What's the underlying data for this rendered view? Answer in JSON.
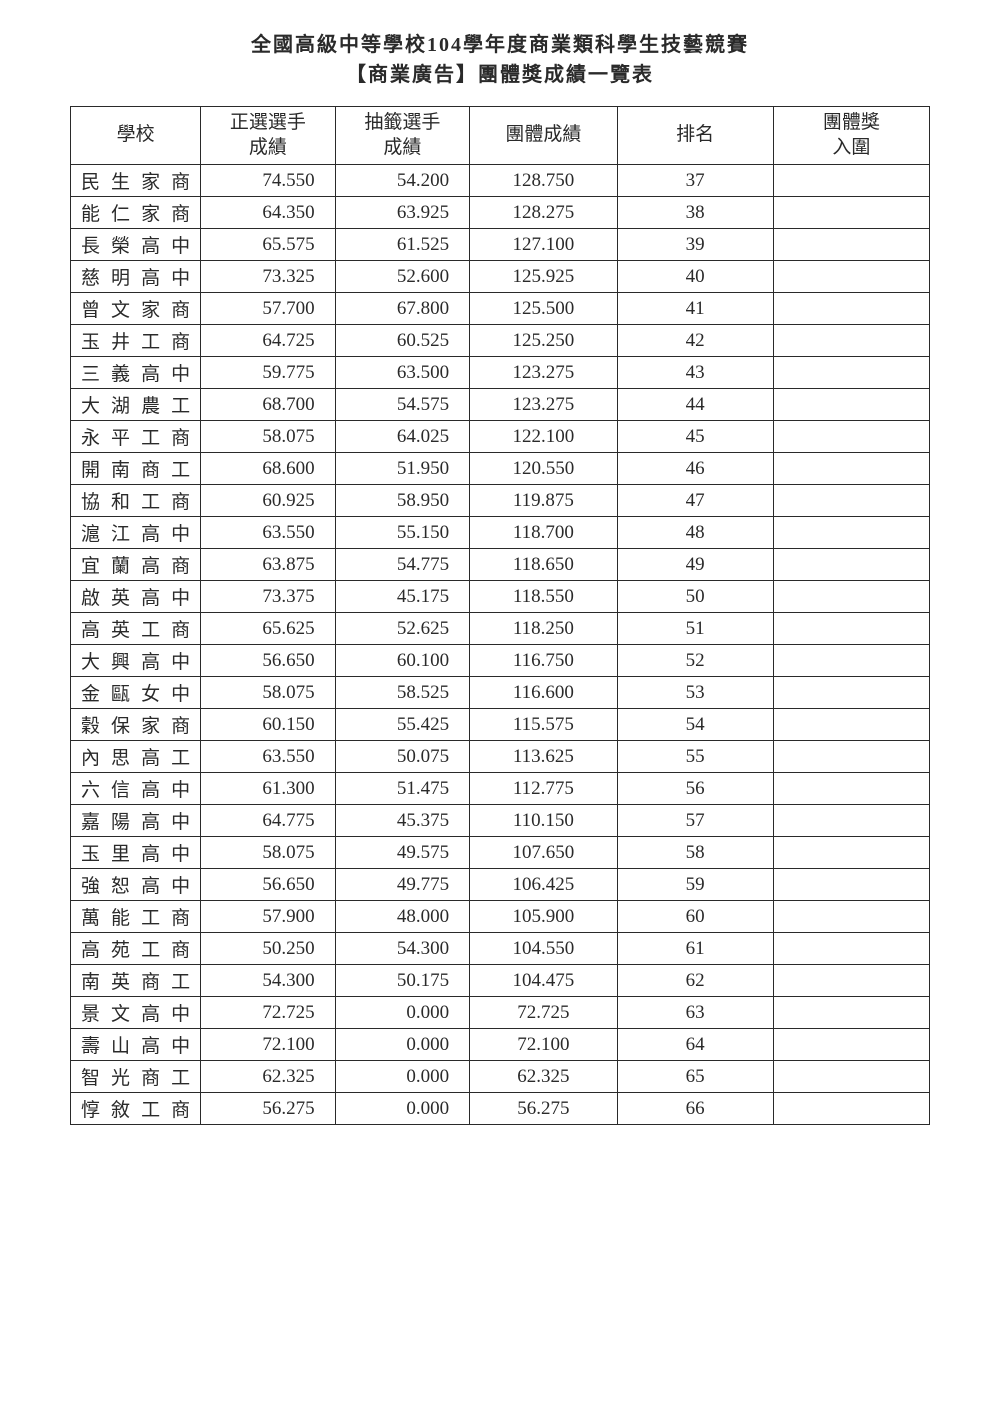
{
  "title_line1": "全國高級中等學校104學年度商業類科學生技藝競賽",
  "title_line2": "【商業廣告】團體獎成績一覽表",
  "columns": {
    "school": "學校",
    "score1_l1": "正選選手",
    "score1_l2": "成績",
    "score2_l1": "抽籤選手",
    "score2_l2": "成績",
    "total": "團體成績",
    "rank": "排名",
    "award_l1": "團體獎",
    "award_l2": "入圍"
  },
  "rows": [
    {
      "school": "民生家商",
      "s1": "74.550",
      "s2": "54.200",
      "total": "128.750",
      "rank": "37",
      "award": ""
    },
    {
      "school": "能仁家商",
      "s1": "64.350",
      "s2": "63.925",
      "total": "128.275",
      "rank": "38",
      "award": ""
    },
    {
      "school": "長榮高中",
      "s1": "65.575",
      "s2": "61.525",
      "total": "127.100",
      "rank": "39",
      "award": ""
    },
    {
      "school": "慈明高中",
      "s1": "73.325",
      "s2": "52.600",
      "total": "125.925",
      "rank": "40",
      "award": ""
    },
    {
      "school": "曾文家商",
      "s1": "57.700",
      "s2": "67.800",
      "total": "125.500",
      "rank": "41",
      "award": ""
    },
    {
      "school": "玉井工商",
      "s1": "64.725",
      "s2": "60.525",
      "total": "125.250",
      "rank": "42",
      "award": ""
    },
    {
      "school": "三義高中",
      "s1": "59.775",
      "s2": "63.500",
      "total": "123.275",
      "rank": "43",
      "award": ""
    },
    {
      "school": "大湖農工",
      "s1": "68.700",
      "s2": "54.575",
      "total": "123.275",
      "rank": "44",
      "award": ""
    },
    {
      "school": "永平工商",
      "s1": "58.075",
      "s2": "64.025",
      "total": "122.100",
      "rank": "45",
      "award": ""
    },
    {
      "school": "開南商工",
      "s1": "68.600",
      "s2": "51.950",
      "total": "120.550",
      "rank": "46",
      "award": ""
    },
    {
      "school": "協和工商",
      "s1": "60.925",
      "s2": "58.950",
      "total": "119.875",
      "rank": "47",
      "award": ""
    },
    {
      "school": "滬江高中",
      "s1": "63.550",
      "s2": "55.150",
      "total": "118.700",
      "rank": "48",
      "award": ""
    },
    {
      "school": "宜蘭高商",
      "s1": "63.875",
      "s2": "54.775",
      "total": "118.650",
      "rank": "49",
      "award": ""
    },
    {
      "school": "啟英高中",
      "s1": "73.375",
      "s2": "45.175",
      "total": "118.550",
      "rank": "50",
      "award": ""
    },
    {
      "school": "高英工商",
      "s1": "65.625",
      "s2": "52.625",
      "total": "118.250",
      "rank": "51",
      "award": ""
    },
    {
      "school": "大興高中",
      "s1": "56.650",
      "s2": "60.100",
      "total": "116.750",
      "rank": "52",
      "award": ""
    },
    {
      "school": "金甌女中",
      "s1": "58.075",
      "s2": "58.525",
      "total": "116.600",
      "rank": "53",
      "award": ""
    },
    {
      "school": "穀保家商",
      "s1": "60.150",
      "s2": "55.425",
      "total": "115.575",
      "rank": "54",
      "award": ""
    },
    {
      "school": "內思高工",
      "s1": "63.550",
      "s2": "50.075",
      "total": "113.625",
      "rank": "55",
      "award": ""
    },
    {
      "school": "六信高中",
      "s1": "61.300",
      "s2": "51.475",
      "total": "112.775",
      "rank": "56",
      "award": ""
    },
    {
      "school": "嘉陽高中",
      "s1": "64.775",
      "s2": "45.375",
      "total": "110.150",
      "rank": "57",
      "award": ""
    },
    {
      "school": "玉里高中",
      "s1": "58.075",
      "s2": "49.575",
      "total": "107.650",
      "rank": "58",
      "award": ""
    },
    {
      "school": "強恕高中",
      "s1": "56.650",
      "s2": "49.775",
      "total": "106.425",
      "rank": "59",
      "award": ""
    },
    {
      "school": "萬能工商",
      "s1": "57.900",
      "s2": "48.000",
      "total": "105.900",
      "rank": "60",
      "award": ""
    },
    {
      "school": "高苑工商",
      "s1": "50.250",
      "s2": "54.300",
      "total": "104.550",
      "rank": "61",
      "award": ""
    },
    {
      "school": "南英商工",
      "s1": "54.300",
      "s2": "50.175",
      "total": "104.475",
      "rank": "62",
      "award": ""
    },
    {
      "school": "景文高中",
      "s1": "72.725",
      "s2": "0.000",
      "total": "72.725",
      "rank": "63",
      "award": ""
    },
    {
      "school": "壽山高中",
      "s1": "72.100",
      "s2": "0.000",
      "total": "72.100",
      "rank": "64",
      "award": ""
    },
    {
      "school": "智光商工",
      "s1": "62.325",
      "s2": "0.000",
      "total": "62.325",
      "rank": "65",
      "award": ""
    },
    {
      "school": "惇敘工商",
      "s1": "56.275",
      "s2": "0.000",
      "total": "56.275",
      "rank": "66",
      "award": ""
    }
  ]
}
